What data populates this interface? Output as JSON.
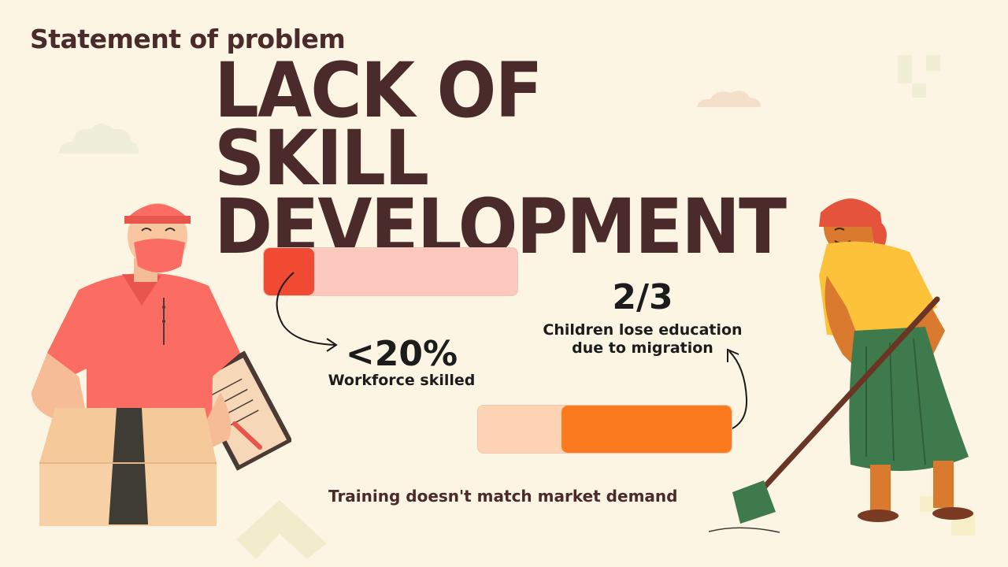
{
  "subtitle": "Statement of problem",
  "headline": "LACK OF SKILL\nDEVELOPMENT",
  "stats": [
    {
      "value": "<20%",
      "label": "Workforce skilled",
      "fill_fraction": 0.2,
      "fill_color": "#f04b32",
      "track_color": "#fdc8be"
    },
    {
      "value": "2/3",
      "label": "Children lose education\ndue to migration",
      "fill_fraction": 0.67,
      "fill_color": "#fc7a1e",
      "track_color": "#fdd3b3"
    }
  ],
  "footer": "Training doesn't match market demand",
  "colors": {
    "background": "#fcf5e4",
    "heading": "#4a2a2a"
  },
  "illustrations": [
    "delivery-worker",
    "farm-worker"
  ]
}
